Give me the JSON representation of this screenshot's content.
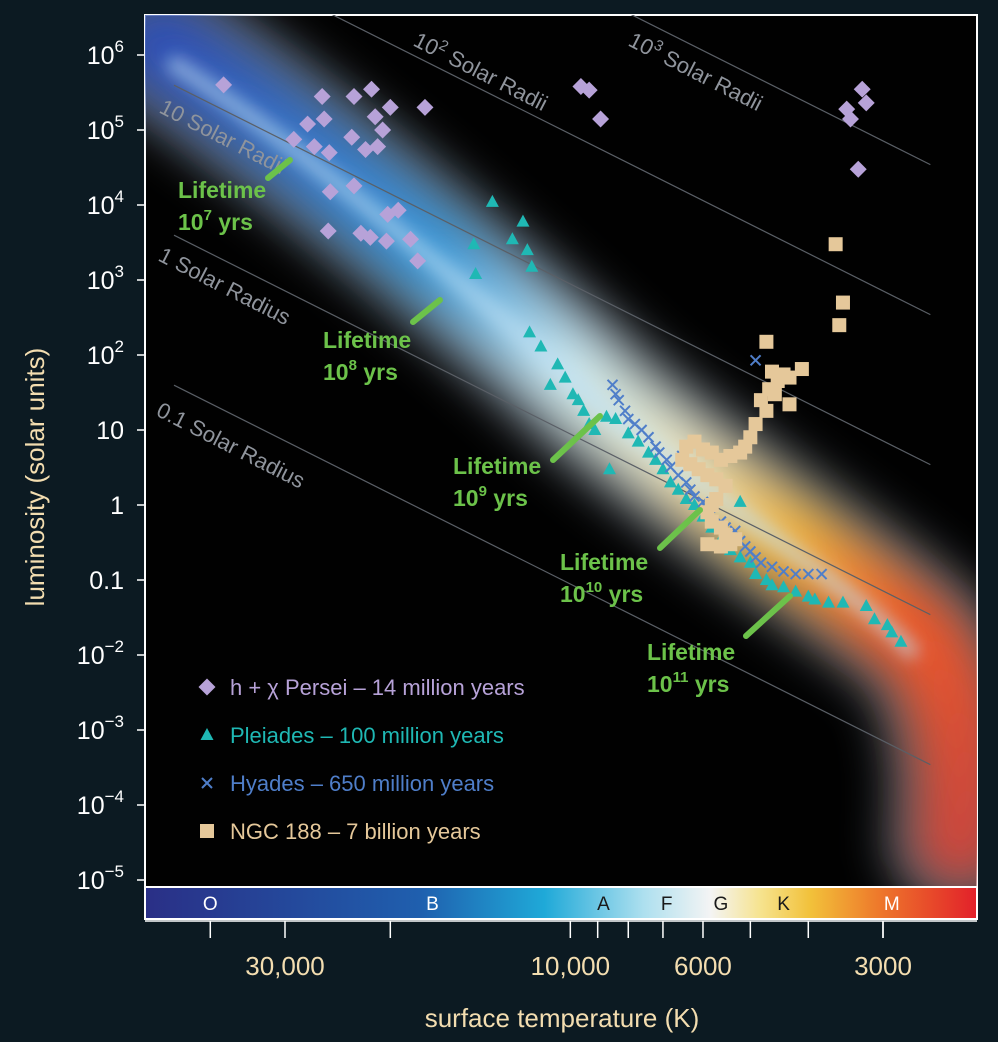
{
  "chart_data": {
    "type": "scatter",
    "title": "",
    "xlabel": "surface temperature (K)",
    "ylabel": "luminosity (solar units)",
    "x_scale": "log",
    "x_reversed": true,
    "y_scale": "log",
    "xlim": [
      46000,
      2500
    ],
    "ylim": [
      5e-06,
      2000000
    ],
    "x_ticks": [
      {
        "value": 30000,
        "label": "30,000"
      },
      {
        "value": 10000,
        "label": "10,000"
      },
      {
        "value": 6000,
        "label": "6000"
      },
      {
        "value": 3000,
        "label": "3000"
      }
    ],
    "y_ticks": [
      {
        "value": 1000000,
        "base": "10",
        "exp": "6"
      },
      {
        "value": 100000,
        "base": "10",
        "exp": "5"
      },
      {
        "value": 10000,
        "base": "10",
        "exp": "4"
      },
      {
        "value": 1000,
        "base": "10",
        "exp": "3"
      },
      {
        "value": 100,
        "base": "10",
        "exp": "2"
      },
      {
        "value": 10,
        "base": "10",
        "exp": ""
      },
      {
        "value": 1,
        "base": "1",
        "exp": ""
      },
      {
        "value": 0.1,
        "base": "0.1",
        "exp": ""
      },
      {
        "value": 0.01,
        "base": "10",
        "exp": "−2"
      },
      {
        "value": 0.001,
        "base": "10",
        "exp": "−3"
      },
      {
        "value": 0.0001,
        "base": "10",
        "exp": "−4"
      },
      {
        "value": 1e-05,
        "base": "10",
        "exp": "−5"
      }
    ],
    "spectral_classes": [
      {
        "label": "O",
        "temp": 40000,
        "color": "#ffffff"
      },
      {
        "label": "B",
        "temp": 17000,
        "color": "#ffffff"
      },
      {
        "label": "A",
        "temp": 8800,
        "color": "#1a1a1a"
      },
      {
        "label": "F",
        "temp": 6900,
        "color": "#1a1a1a"
      },
      {
        "label": "G",
        "temp": 5600,
        "color": "#1a1a1a"
      },
      {
        "label": "K",
        "temp": 4400,
        "color": "#1a1a1a"
      },
      {
        "label": "M",
        "temp": 2900,
        "color": "#ffffff"
      }
    ],
    "radius_lines": [
      {
        "label_base": "0.1 Solar Radius",
        "label_exp": "",
        "label_tail": "",
        "radius": 0.1
      },
      {
        "label_base": "1 Solar Radius",
        "label_exp": "",
        "label_tail": "",
        "radius": 1
      },
      {
        "label_base": "10 Solar Radii",
        "label_exp": "",
        "label_tail": "",
        "radius": 10
      },
      {
        "label_base": "10",
        "label_exp": "2",
        "label_tail": " Solar Radii",
        "radius": 100
      },
      {
        "label_base": "10",
        "label_exp": "3",
        "label_tail": " Solar Radii",
        "radius": 1000
      }
    ],
    "lifetimes": [
      {
        "line1": "Lifetime",
        "base": "10",
        "exp": "7",
        "tail": " yrs"
      },
      {
        "line1": "Lifetime",
        "base": "10",
        "exp": "8",
        "tail": " yrs"
      },
      {
        "line1": "Lifetime",
        "base": "10",
        "exp": "9",
        "tail": " yrs"
      },
      {
        "line1": "Lifetime",
        "base": "10",
        "exp": "10",
        "tail": " yrs"
      },
      {
        "line1": "Lifetime",
        "base": "10",
        "exp": "11",
        "tail": " yrs"
      }
    ],
    "legend": "bottom-left",
    "series": [
      {
        "name": "h + χ Persei – 14 million years",
        "marker": "diamond",
        "color": "#b7a2d8",
        "points": [
          [
            38000,
            400000
          ],
          [
            29000,
            75000
          ],
          [
            26000,
            280000
          ],
          [
            27500,
            120000
          ],
          [
            26800,
            60000
          ],
          [
            25300,
            50000
          ],
          [
            25800,
            140000
          ],
          [
            23000,
            280000
          ],
          [
            21500,
            350000
          ],
          [
            20600,
            100000
          ],
          [
            20000,
            200000
          ],
          [
            17500,
            200000
          ],
          [
            23200,
            80000
          ],
          [
            21200,
            150000
          ],
          [
            25200,
            15000
          ],
          [
            23000,
            18000
          ],
          [
            22000,
            55000
          ],
          [
            21000,
            60000
          ],
          [
            25400,
            4500
          ],
          [
            22400,
            4200
          ],
          [
            20200,
            7500
          ],
          [
            19400,
            8500
          ],
          [
            21600,
            3700
          ],
          [
            20300,
            3300
          ],
          [
            18500,
            3500
          ],
          [
            18000,
            1800
          ],
          [
            9600,
            380000
          ],
          [
            9300,
            340000
          ],
          [
            8900,
            140000
          ],
          [
            3450,
            190000
          ],
          [
            3400,
            140000
          ],
          [
            3250,
            350000
          ],
          [
            3200,
            230000
          ],
          [
            3300,
            30000
          ]
        ]
      },
      {
        "name": "Pleiades – 100 million years",
        "marker": "triangle",
        "color": "#1fb8b4",
        "points": [
          [
            13500,
            11000
          ],
          [
            12500,
            3500
          ],
          [
            11800,
            2500
          ],
          [
            11600,
            1500
          ],
          [
            14500,
            3000
          ],
          [
            14400,
            1200
          ],
          [
            11700,
            200
          ],
          [
            11200,
            130
          ],
          [
            10500,
            75
          ],
          [
            10200,
            50
          ],
          [
            9900,
            30
          ],
          [
            9500,
            18
          ],
          [
            9300,
            12
          ],
          [
            9100,
            10
          ],
          [
            8700,
            15
          ],
          [
            8400,
            14
          ],
          [
            8000,
            9
          ],
          [
            7700,
            7
          ],
          [
            7400,
            5
          ],
          [
            7200,
            4
          ],
          [
            7000,
            3
          ],
          [
            6800,
            2
          ],
          [
            6600,
            1.6
          ],
          [
            6400,
            1.2
          ],
          [
            6200,
            1.0
          ],
          [
            6000,
            0.7
          ],
          [
            5800,
            0.5
          ],
          [
            5600,
            0.35
          ],
          [
            5400,
            0.25
          ],
          [
            5200,
            0.2
          ],
          [
            5000,
            0.17
          ],
          [
            4900,
            0.12
          ],
          [
            4700,
            0.1
          ],
          [
            4600,
            0.085
          ],
          [
            4400,
            0.08
          ],
          [
            4200,
            0.07
          ],
          [
            4000,
            0.06
          ],
          [
            3900,
            0.055
          ],
          [
            3700,
            0.05
          ],
          [
            3500,
            0.05
          ],
          [
            3200,
            0.045
          ],
          [
            3100,
            0.03
          ],
          [
            2950,
            0.025
          ],
          [
            2900,
            0.02
          ],
          [
            2800,
            0.015
          ],
          [
            8600,
            3
          ],
          [
            5200,
            1.1
          ],
          [
            12000,
            6000
          ],
          [
            10800,
            40
          ],
          [
            9700,
            25
          ]
        ]
      },
      {
        "name": "Hyades – 650 million years",
        "marker": "x",
        "color": "#4f7ec9",
        "points": [
          [
            8500,
            40
          ],
          [
            8300,
            25
          ],
          [
            8100,
            18
          ],
          [
            8000,
            14
          ],
          [
            7800,
            12
          ],
          [
            7600,
            10
          ],
          [
            7400,
            8
          ],
          [
            7200,
            6
          ],
          [
            7100,
            5
          ],
          [
            6900,
            4
          ],
          [
            6800,
            3.2
          ],
          [
            6600,
            2.5
          ],
          [
            6400,
            2
          ],
          [
            6300,
            1.6
          ],
          [
            6200,
            1.3
          ],
          [
            6000,
            1.1
          ],
          [
            5900,
            0.9
          ],
          [
            5800,
            0.75
          ],
          [
            5600,
            0.6
          ],
          [
            5500,
            0.5
          ],
          [
            5400,
            0.4
          ],
          [
            5200,
            0.33
          ],
          [
            5100,
            0.28
          ],
          [
            5000,
            0.24
          ],
          [
            4900,
            0.2
          ],
          [
            4800,
            0.17
          ],
          [
            4600,
            0.15
          ],
          [
            4400,
            0.13
          ],
          [
            4200,
            0.12
          ],
          [
            4000,
            0.12
          ],
          [
            3800,
            0.12
          ],
          [
            4900,
            85
          ],
          [
            8400,
            30
          ],
          [
            6500,
            4.5
          ],
          [
            5300,
            0.45
          ]
        ]
      },
      {
        "name": "NGC 188 – 7 billion years",
        "marker": "square",
        "color": "#e5c89a",
        "points": [
          [
            3600,
            3000
          ],
          [
            3500,
            500
          ],
          [
            3550,
            250
          ],
          [
            4700,
            150
          ],
          [
            4600,
            60
          ],
          [
            4500,
            45
          ],
          [
            4400,
            55
          ],
          [
            4300,
            50
          ],
          [
            4650,
            35
          ],
          [
            4550,
            30
          ],
          [
            4300,
            22
          ],
          [
            4100,
            65
          ],
          [
            4800,
            25
          ],
          [
            4700,
            18
          ],
          [
            4900,
            12
          ],
          [
            5000,
            8
          ],
          [
            5100,
            6
          ],
          [
            5200,
            5
          ],
          [
            5400,
            4.5
          ],
          [
            5600,
            4
          ],
          [
            5800,
            5
          ],
          [
            6000,
            5.5
          ],
          [
            6200,
            7
          ],
          [
            6400,
            6
          ],
          [
            6500,
            4
          ],
          [
            6300,
            3.5
          ],
          [
            6100,
            3
          ],
          [
            5900,
            2.5
          ],
          [
            5700,
            2.2
          ],
          [
            5500,
            1.8
          ],
          [
            5700,
            1.2
          ],
          [
            5800,
            1
          ],
          [
            5900,
            0.8
          ],
          [
            5800,
            0.6
          ],
          [
            5600,
            0.5
          ],
          [
            5500,
            0.4
          ],
          [
            5300,
            0.35
          ],
          [
            5600,
            0.28
          ],
          [
            5400,
            0.3
          ],
          [
            5900,
            0.3
          ]
        ]
      }
    ]
  }
}
